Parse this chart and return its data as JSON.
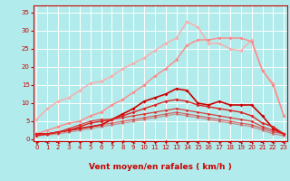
{
  "background_color": "#b2ebeb",
  "grid_color": "#ffffff",
  "xlabel": "Vent moyen/en rafales ( km/h )",
  "xlabel_color": "#cc0000",
  "tick_color": "#cc0000",
  "x_ticks": [
    0,
    1,
    2,
    3,
    4,
    5,
    6,
    7,
    8,
    9,
    10,
    11,
    12,
    13,
    14,
    15,
    16,
    17,
    18,
    19,
    20,
    21,
    22,
    23
  ],
  "y_ticks": [
    0,
    5,
    10,
    15,
    20,
    25,
    30,
    35
  ],
  "ylim": [
    -0.5,
    37
  ],
  "xlim": [
    -0.3,
    23.3
  ],
  "lines": [
    {
      "color": "#ffaaaa",
      "alpha": 1.0,
      "lw": 1.0,
      "marker": "D",
      "markersize": 2.0,
      "data_x": [
        0,
        1,
        2,
        3,
        4,
        5,
        6,
        7,
        8,
        9,
        10,
        11,
        12,
        13,
        14,
        15,
        16,
        17,
        18,
        19,
        20,
        21,
        22,
        23
      ],
      "data_y": [
        5.5,
        8.5,
        10.5,
        11.5,
        13.5,
        15.5,
        16.0,
        17.5,
        19.5,
        21.0,
        22.5,
        24.5,
        26.5,
        28.0,
        32.5,
        31.0,
        26.5,
        26.5,
        25.0,
        24.5,
        27.5,
        19.0,
        15.5,
        6.5
      ]
    },
    {
      "color": "#ff8888",
      "alpha": 1.0,
      "lw": 1.0,
      "marker": "D",
      "markersize": 2.0,
      "data_x": [
        0,
        1,
        2,
        3,
        4,
        5,
        6,
        7,
        8,
        9,
        10,
        11,
        12,
        13,
        14,
        15,
        16,
        17,
        18,
        19,
        20,
        21,
        22,
        23
      ],
      "data_y": [
        1.5,
        2.5,
        3.5,
        4.5,
        5.0,
        6.5,
        7.5,
        9.5,
        11.0,
        13.0,
        15.0,
        17.5,
        19.5,
        22.0,
        26.0,
        27.5,
        27.5,
        28.0,
        28.0,
        28.0,
        27.0,
        19.0,
        15.0,
        6.5
      ]
    },
    {
      "color": "#cc0000",
      "alpha": 1.0,
      "lw": 1.2,
      "marker": "D",
      "markersize": 2.0,
      "data_x": [
        0,
        1,
        2,
        3,
        4,
        5,
        6,
        7,
        8,
        9,
        10,
        11,
        12,
        13,
        14,
        15,
        16,
        17,
        18,
        19,
        20,
        21,
        22,
        23
      ],
      "data_y": [
        1.5,
        1.5,
        2.0,
        2.5,
        3.0,
        3.5,
        4.0,
        5.5,
        7.0,
        8.5,
        10.5,
        11.5,
        12.5,
        14.0,
        13.5,
        10.0,
        9.5,
        10.5,
        9.5,
        9.5,
        9.5,
        6.5,
        3.0,
        1.5
      ]
    },
    {
      "color": "#dd2222",
      "alpha": 1.0,
      "lw": 1.0,
      "marker": "D",
      "markersize": 2.0,
      "data_x": [
        0,
        1,
        2,
        3,
        4,
        5,
        6,
        7,
        8,
        9,
        10,
        11,
        12,
        13,
        14,
        15,
        16,
        17,
        18,
        19,
        20,
        21,
        22,
        23
      ],
      "data_y": [
        1.5,
        1.5,
        2.0,
        2.5,
        3.5,
        4.5,
        5.0,
        5.5,
        6.5,
        7.5,
        8.5,
        9.5,
        10.5,
        11.0,
        10.5,
        9.5,
        9.0,
        8.5,
        8.0,
        7.5,
        6.5,
        4.5,
        3.5,
        1.5
      ]
    },
    {
      "color": "#dd2222",
      "alpha": 0.85,
      "lw": 0.9,
      "marker": "D",
      "markersize": 1.8,
      "data_x": [
        0,
        1,
        2,
        3,
        4,
        5,
        6,
        7,
        8,
        9,
        10,
        11,
        12,
        13,
        14,
        15,
        16,
        17,
        18,
        19,
        20,
        21,
        22,
        23
      ],
      "data_y": [
        1.0,
        1.5,
        2.0,
        3.0,
        4.0,
        5.0,
        5.5,
        5.5,
        6.0,
        6.5,
        7.0,
        7.5,
        8.0,
        8.5,
        8.0,
        7.5,
        7.0,
        6.5,
        6.0,
        5.5,
        5.0,
        3.5,
        2.5,
        1.5
      ]
    },
    {
      "color": "#dd2222",
      "alpha": 0.65,
      "lw": 0.9,
      "marker": "D",
      "markersize": 1.8,
      "data_x": [
        0,
        1,
        2,
        3,
        4,
        5,
        6,
        7,
        8,
        9,
        10,
        11,
        12,
        13,
        14,
        15,
        16,
        17,
        18,
        19,
        20,
        21,
        22,
        23
      ],
      "data_y": [
        1.0,
        1.5,
        2.0,
        2.5,
        3.0,
        3.5,
        4.0,
        4.5,
        5.0,
        5.5,
        6.0,
        6.5,
        7.0,
        7.5,
        7.0,
        6.5,
        6.0,
        5.5,
        5.0,
        4.5,
        4.0,
        3.0,
        2.0,
        1.5
      ]
    },
    {
      "color": "#dd2222",
      "alpha": 0.45,
      "lw": 0.9,
      "marker": "D",
      "markersize": 1.8,
      "data_x": [
        0,
        1,
        2,
        3,
        4,
        5,
        6,
        7,
        8,
        9,
        10,
        11,
        12,
        13,
        14,
        15,
        16,
        17,
        18,
        19,
        20,
        21,
        22,
        23
      ],
      "data_y": [
        1.0,
        1.2,
        1.5,
        2.0,
        2.5,
        3.0,
        3.5,
        4.0,
        4.5,
        5.0,
        5.5,
        6.0,
        6.5,
        7.0,
        6.5,
        6.0,
        5.5,
        5.0,
        4.5,
        4.0,
        3.5,
        2.5,
        1.5,
        1.0
      ]
    }
  ],
  "arrow_color": "#cc0000",
  "wind_dirs": [
    225,
    270,
    270,
    225,
    225,
    225,
    270,
    225,
    315,
    270,
    270,
    225,
    315,
    225,
    225,
    270,
    270,
    225,
    270,
    270,
    270,
    270,
    270,
    270
  ]
}
